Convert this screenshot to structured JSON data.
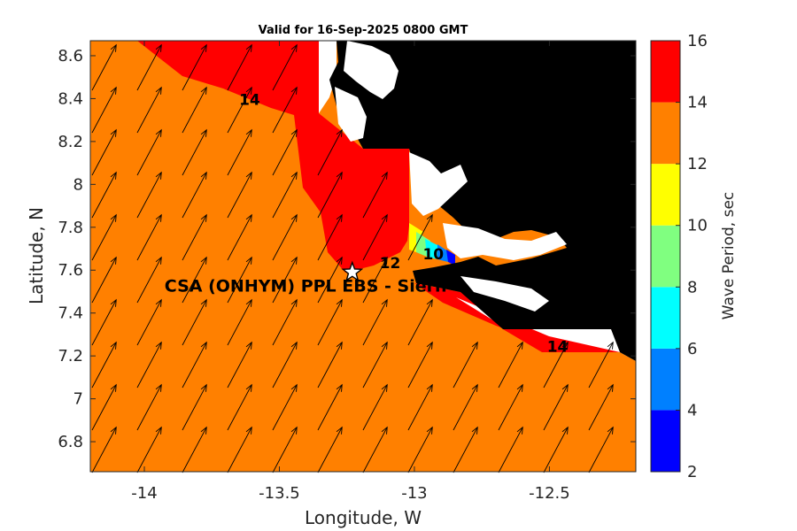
{
  "chart_data": {
    "type": "heatmap",
    "title": "Valid for 16-Sep-2025 0800 GMT",
    "xlabel": "Longitude, W",
    "ylabel": "Latitude, N",
    "xlim": [
      -14.2,
      -12.18
    ],
    "ylim": [
      6.66,
      8.67
    ],
    "xticks": [
      -14,
      -13.5,
      -13,
      -12.5
    ],
    "xtick_labels": [
      "-14",
      "-13.5",
      "-13",
      "-12.5"
    ],
    "yticks": [
      6.8,
      7,
      7.2,
      7.4,
      7.6,
      7.8,
      8,
      8.2,
      8.4,
      8.6
    ],
    "ytick_labels": [
      "6.8",
      "7",
      "7.2",
      "7.4",
      "7.6",
      "7.8",
      "8",
      "8.2",
      "8.4",
      "8.6"
    ],
    "colorbar": {
      "label": "Wave Period, sec",
      "levels": [
        2,
        4,
        6,
        8,
        10,
        12,
        14,
        16
      ],
      "tick_labels": [
        "2",
        "4",
        "6",
        "8",
        "10",
        "12",
        "14",
        "16"
      ],
      "colors": [
        "#0000ff",
        "#0080ff",
        "#00ffff",
        "#80ff80",
        "#ffff00",
        "#ff8000",
        "#ff0000"
      ]
    },
    "land_color": "#000000",
    "contour_labels": [
      {
        "text": "14",
        "lon": -13.61,
        "lat": 8.37
      },
      {
        "text": "14",
        "lon": -12.47,
        "lat": 7.22
      },
      {
        "text": "12",
        "lon": -13.09,
        "lat": 7.61
      },
      {
        "text": "10",
        "lon": -12.93,
        "lat": 7.65
      }
    ],
    "site": {
      "name": "CSA (ONHYM) PPL EBS - Sierra",
      "display_label": "CSA (ONHYM) PPL EBS  - Siern",
      "lon": -13.23,
      "lat": 7.59
    },
    "arrow_direction": "toward northeast"
  }
}
